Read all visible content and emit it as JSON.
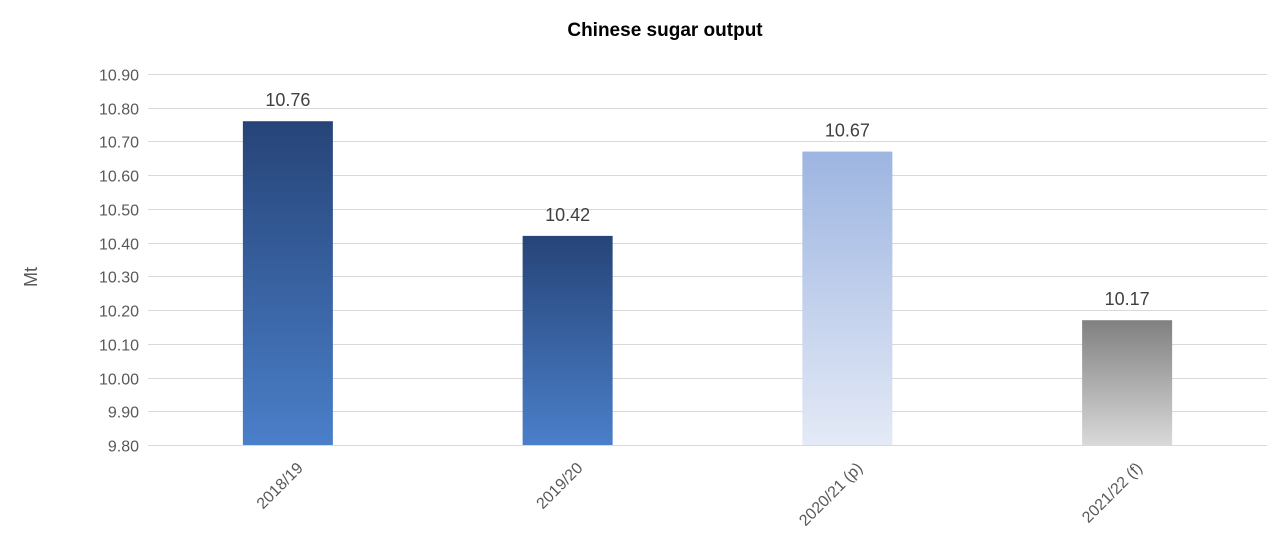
{
  "chart_data": {
    "type": "bar",
    "title": "Chinese sugar output",
    "xlabel": "",
    "ylabel": "Mt",
    "ylim": [
      9.8,
      10.9
    ],
    "ytick_step": 0.1,
    "ytick_decimals": 2,
    "grid": true,
    "legend": "none",
    "categories": [
      "2018/19",
      "2019/20",
      "2020/21 (p)",
      "2021/22 (f)"
    ],
    "values": [
      10.76,
      10.42,
      10.67,
      10.17
    ],
    "data_labels": [
      "10.76",
      "10.42",
      "10.67",
      "10.17"
    ],
    "bar_colors": [
      {
        "top": "#264478",
        "bottom": "#4A7FC9"
      },
      {
        "top": "#264478",
        "bottom": "#4A7FC9"
      },
      {
        "top": "#9DB5E1",
        "bottom": "#E4EAF6"
      },
      {
        "top": "#808080",
        "bottom": "#D9D9D9"
      }
    ]
  }
}
